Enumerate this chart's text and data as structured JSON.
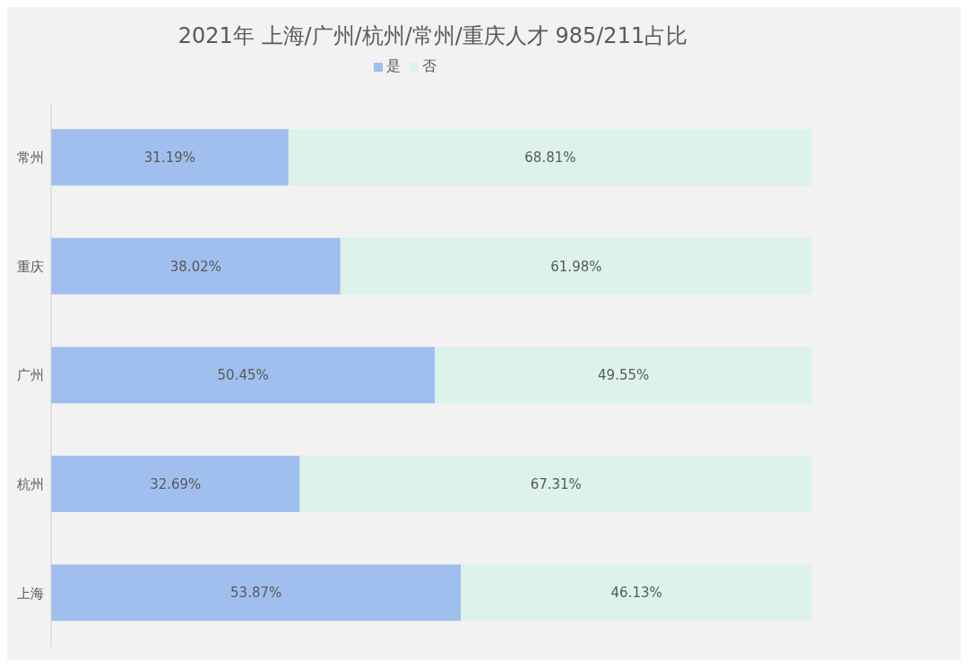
{
  "chart_data": {
    "type": "bar",
    "orientation": "horizontal",
    "stacked": true,
    "title": "2021年 上海/广州/杭州/常州/重庆人才 985/211占比",
    "categories": [
      "常州",
      "重庆",
      "广州",
      "杭州",
      "上海"
    ],
    "series": [
      {
        "name": "是",
        "color": "#a0bfee",
        "values": [
          31.19,
          38.02,
          50.45,
          32.69,
          53.87
        ],
        "value_labels": [
          "31.19%",
          "38.02%",
          "50.45%",
          "32.69%",
          "53.87%"
        ]
      },
      {
        "name": "否",
        "color": "#dcf2ea",
        "values": [
          68.81,
          61.98,
          49.55,
          67.31,
          46.13
        ],
        "value_labels": [
          "68.81%",
          "61.98%",
          "49.55%",
          "67.31%",
          "46.13%"
        ]
      }
    ],
    "legend": "top",
    "grid": false
  }
}
